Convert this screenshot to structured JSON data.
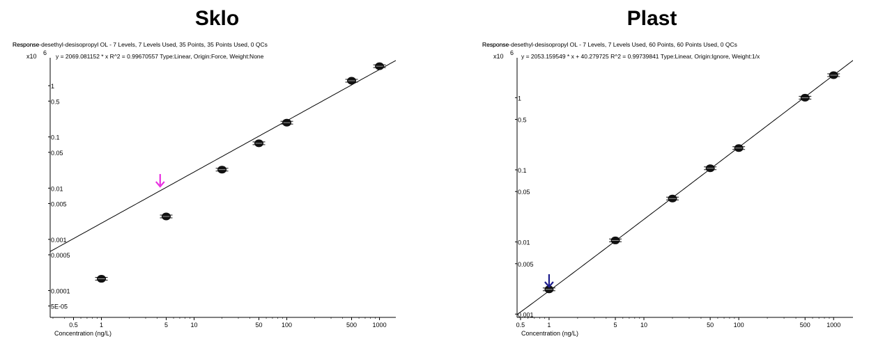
{
  "chart_data": [
    {
      "type": "scatter",
      "title": "Sklo",
      "header": "Response-desethyl-desisopropyl OL - 7 Levels, 7 Levels Used, 35 Points, 35 Points Used, 0 QCs",
      "y_label_overlay": "Response",
      "y_multiplier": "x10",
      "y_multiplier_exp": "6",
      "equation": "y = 2069.081152 * x  R^2 = 0.99670557  Type:Linear, Origin:Force, Weight:None",
      "xlabel": "Concentration (ng/L)",
      "xscale": "log",
      "yscale": "log",
      "xlim": [
        0.28,
        1500
      ],
      "ylim": [
        3e-05,
        3
      ],
      "x_ticks": [
        {
          "v": 0.5,
          "label": "0.5"
        },
        {
          "v": 1,
          "label": "1"
        },
        {
          "v": 5,
          "label": "5"
        },
        {
          "v": 10,
          "label": "10"
        },
        {
          "v": 50,
          "label": "50"
        },
        {
          "v": 100,
          "label": "100"
        },
        {
          "v": 500,
          "label": "500"
        },
        {
          "v": 1000,
          "label": "1000"
        }
      ],
      "y_ticks": [
        {
          "v": 1,
          "label": "1"
        },
        {
          "v": 0.5,
          "label": "0.5"
        },
        {
          "v": 0.1,
          "label": "0.1"
        },
        {
          "v": 0.05,
          "label": "0.05"
        },
        {
          "v": 0.01,
          "label": "0.01"
        },
        {
          "v": 0.005,
          "label": "0.005"
        },
        {
          "v": 0.001,
          "label": "0.001"
        },
        {
          "v": 0.0005,
          "label": "0.0005"
        },
        {
          "v": 0.0001,
          "label": "0.0001"
        },
        {
          "v": 5e-05,
          "label": "5E-05"
        }
      ],
      "points": [
        {
          "x": 1,
          "y": 0.00017
        },
        {
          "x": 5,
          "y": 0.0028
        },
        {
          "x": 20,
          "y": 0.023
        },
        {
          "x": 50,
          "y": 0.075
        },
        {
          "x": 100,
          "y": 0.19
        },
        {
          "x": 500,
          "y": 1.25
        },
        {
          "x": 1000,
          "y": 2.4
        }
      ],
      "fit": {
        "slope": 0.002069081152,
        "intercept": 0
      },
      "arrow": {
        "x": 4.3,
        "color": "#e830e0"
      }
    },
    {
      "type": "scatter",
      "title": "Plast",
      "header": "Response-desethyl-desisopropyl OL - 7 Levels, 7 Levels Used, 60 Points, 60 Points Used, 0 QCs",
      "y_label_overlay": "Response",
      "y_multiplier": "x10",
      "y_multiplier_exp": "6",
      "equation": "y = 2053.159549 * x  + 40.279725  R^2 = 0.99739841  Type:Linear, Origin:Ignore, Weight:1/x",
      "xlabel": "Concentration (ng/L)",
      "xscale": "log",
      "yscale": "log",
      "xlim": [
        0.46,
        1600
      ],
      "ylim": [
        0.0009,
        3.2
      ],
      "x_ticks": [
        {
          "v": 0.5,
          "label": "0.5"
        },
        {
          "v": 1,
          "label": "1"
        },
        {
          "v": 5,
          "label": "5"
        },
        {
          "v": 10,
          "label": "10"
        },
        {
          "v": 50,
          "label": "50"
        },
        {
          "v": 100,
          "label": "100"
        },
        {
          "v": 500,
          "label": "500"
        },
        {
          "v": 1000,
          "label": "1000"
        }
      ],
      "y_ticks": [
        {
          "v": 1,
          "label": "1"
        },
        {
          "v": 0.5,
          "label": "0.5"
        },
        {
          "v": 0.1,
          "label": "0.1"
        },
        {
          "v": 0.05,
          "label": "0.05"
        },
        {
          "v": 0.01,
          "label": "0.01"
        },
        {
          "v": 0.005,
          "label": "0.005"
        },
        {
          "v": 0.001,
          "label": "0.001"
        }
      ],
      "points": [
        {
          "x": 1,
          "y": 0.0022
        },
        {
          "x": 5,
          "y": 0.0105
        },
        {
          "x": 20,
          "y": 0.04
        },
        {
          "x": 50,
          "y": 0.105
        },
        {
          "x": 100,
          "y": 0.2
        },
        {
          "x": 500,
          "y": 1.0
        },
        {
          "x": 1000,
          "y": 2.05
        }
      ],
      "fit": {
        "slope": 0.002053159549,
        "intercept": 4.0279725e-05
      },
      "arrow": {
        "x": 1,
        "color": "#1c1c8c"
      }
    }
  ]
}
